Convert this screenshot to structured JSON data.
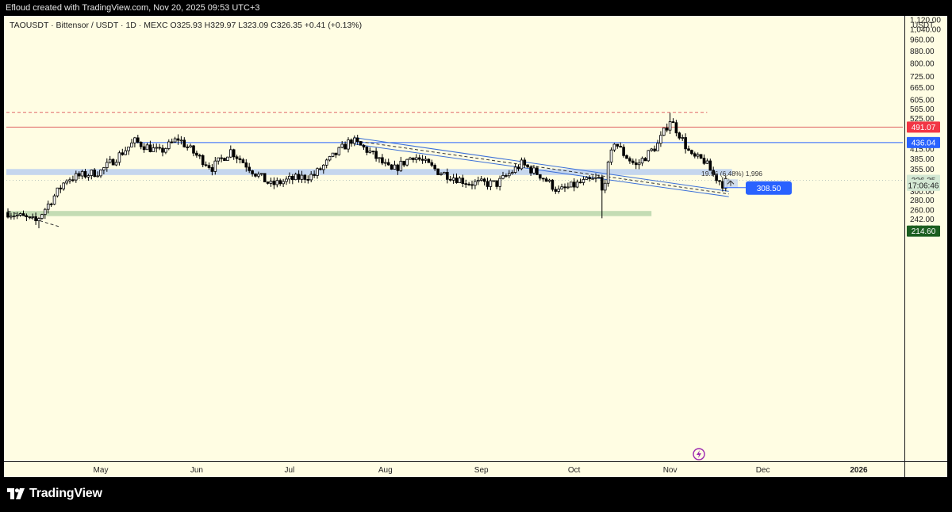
{
  "header": {
    "credit": "Efloud created with TradingView.com, Nov 20, 2025 09:53 UTC+3"
  },
  "legend": {
    "text": "TAOUSDT · Bittensor / USDT · 1D · MEXC  O325.93  H329.97  L323.09  C326.35  +0.41 (+0.13%)"
  },
  "axis": {
    "unit": "USDT"
  },
  "footer": {
    "brand": "TradingView"
  },
  "colors": {
    "background": "#fffde3",
    "up": "#ffffff",
    "down": "#000000",
    "resistance": "#e06666",
    "support": "#2962ff",
    "zone_blue": "#c5d6ee",
    "zone_green": "#c4dcb4",
    "label_blue": "#2962ff",
    "label_red": "#f23645"
  },
  "chart_data": {
    "type": "candlestick",
    "symbol": "TAOUSDT",
    "name": "Bittensor / USDT",
    "interval": "1D",
    "exchange": "MEXC",
    "ohlc_last": {
      "open": 325.93,
      "high": 329.97,
      "low": 323.09,
      "close": 326.35,
      "change": "+0.41",
      "change_pct": "+0.13%"
    },
    "scale": "log",
    "y_ticks": [
      "1,120.00",
      "1,040.00",
      "960.00",
      "880.00",
      "800.00",
      "725.00",
      "665.00",
      "605.00",
      "565.00",
      "525.00",
      "445.00",
      "415.00",
      "385.00",
      "355.00",
      "300.00",
      "280.00",
      "260.00",
      "242.00",
      "226.00"
    ],
    "x_ticks": [
      "May",
      "Jun",
      "Jul",
      "Aug",
      "Sep",
      "Oct",
      "Nov",
      "Dec",
      "2026"
    ],
    "price_labels": [
      {
        "text": "491.07",
        "color": "#f23645",
        "price": 491.07
      },
      {
        "text": "436.04",
        "color": "#2962ff",
        "price": 436.04
      },
      {
        "text": "326.35",
        "color": "#d3e8d3",
        "price": 326.35,
        "dark_text": true
      },
      {
        "text": "17:06:46",
        "color": "#d3e8d3",
        "price": 314,
        "dark_text": true
      },
      {
        "text": "214.60",
        "color": "#1b5e20",
        "price": 221
      }
    ],
    "annotations": {
      "measure": "19.96 (6.48%) 1,996",
      "target_label": "308.50"
    },
    "horizontal_levels": [
      {
        "price": 550,
        "style": "dashed",
        "color": "#e06666"
      },
      {
        "price": 491.07,
        "style": "solid",
        "color": "#e06666"
      },
      {
        "price": 436.04,
        "style": "solid",
        "color": "#2962ff"
      }
    ],
    "zones": [
      {
        "low": 340,
        "high": 356,
        "color": "#c5d6ee"
      },
      {
        "low": 248,
        "high": 258,
        "color": "#c4dcb4"
      }
    ],
    "price_path": [
      {
        "date": "2025-04-01",
        "price": 255
      },
      {
        "date": "2025-04-10",
        "price": 238
      },
      {
        "date": "2025-04-20",
        "price": 330
      },
      {
        "date": "2025-05-01",
        "price": 350
      },
      {
        "date": "2025-05-12",
        "price": 440
      },
      {
        "date": "2025-05-20",
        "price": 405
      },
      {
        "date": "2025-05-26",
        "price": 450
      },
      {
        "date": "2025-06-01",
        "price": 395
      },
      {
        "date": "2025-06-06",
        "price": 360
      },
      {
        "date": "2025-06-12",
        "price": 410
      },
      {
        "date": "2025-06-20",
        "price": 345
      },
      {
        "date": "2025-06-25",
        "price": 315
      },
      {
        "date": "2025-07-01",
        "price": 328
      },
      {
        "date": "2025-07-09",
        "price": 340
      },
      {
        "date": "2025-07-16",
        "price": 400
      },
      {
        "date": "2025-07-21",
        "price": 445
      },
      {
        "date": "2025-07-27",
        "price": 405
      },
      {
        "date": "2025-08-03",
        "price": 350
      },
      {
        "date": "2025-08-10",
        "price": 395
      },
      {
        "date": "2025-08-18",
        "price": 350
      },
      {
        "date": "2025-08-28",
        "price": 320
      },
      {
        "date": "2025-09-06",
        "price": 318
      },
      {
        "date": "2025-09-14",
        "price": 370
      },
      {
        "date": "2025-09-20",
        "price": 340
      },
      {
        "date": "2025-09-26",
        "price": 300
      },
      {
        "date": "2025-10-03",
        "price": 320
      },
      {
        "date": "2025-10-09",
        "price": 330
      },
      {
        "date": "2025-10-10",
        "price": 300
      },
      {
        "date": "2025-10-14",
        "price": 440
      },
      {
        "date": "2025-10-17",
        "price": 400
      },
      {
        "date": "2025-10-21",
        "price": 365
      },
      {
        "date": "2025-10-28",
        "price": 430
      },
      {
        "date": "2025-11-01",
        "price": 520
      },
      {
        "date": "2025-11-04",
        "price": 465
      },
      {
        "date": "2025-11-08",
        "price": 390
      },
      {
        "date": "2025-11-12",
        "price": 380
      },
      {
        "date": "2025-11-15",
        "price": 340
      },
      {
        "date": "2025-11-18",
        "price": 318
      },
      {
        "date": "2025-11-20",
        "price": 326
      }
    ]
  }
}
